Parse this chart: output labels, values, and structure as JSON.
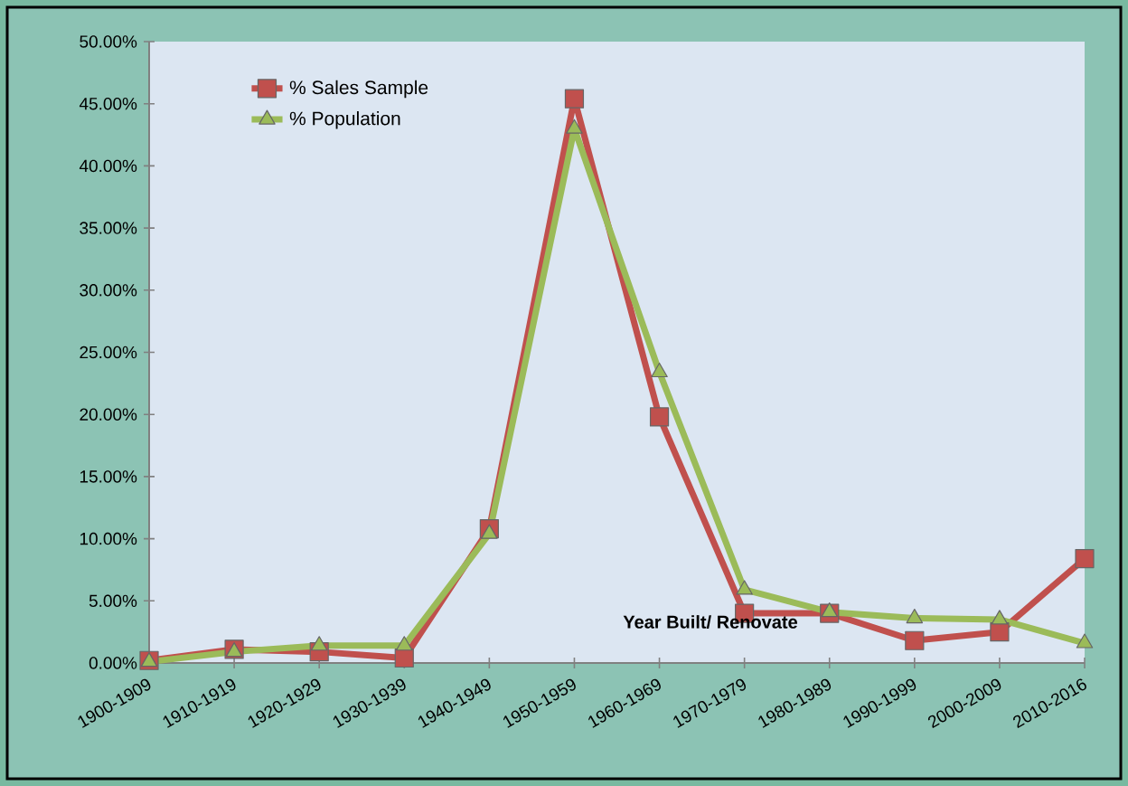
{
  "chart_data": {
    "type": "line",
    "xlabel": "Year Built/ Renovate",
    "categories": [
      "1900-1909",
      "1910-1919",
      "1920-1929",
      "1930-1939",
      "1940-1949",
      "1950-1959",
      "1960-1969",
      "1970-1979",
      "1980-1989",
      "1990-1999",
      "2000-2009",
      "2010-2016"
    ],
    "series": [
      {
        "name": "% Sales Sample",
        "color": "#c0504d",
        "marker": "square",
        "values": [
          0.2,
          1.1,
          0.9,
          0.4,
          10.8,
          45.4,
          19.8,
          4.0,
          4.0,
          1.8,
          2.5,
          8.4
        ]
      },
      {
        "name": "% Population",
        "color": "#9bbb59",
        "marker": "triangle",
        "values": [
          0.1,
          0.9,
          1.4,
          1.4,
          10.4,
          43.0,
          23.4,
          5.9,
          4.1,
          3.6,
          3.5,
          1.6
        ]
      }
    ],
    "ylim": [
      0,
      50
    ],
    "yticks": [
      {
        "value": 0,
        "label": "0.00%"
      },
      {
        "value": 5,
        "label": "5.00%"
      },
      {
        "value": 10,
        "label": "10.00%"
      },
      {
        "value": 15,
        "label": "15.00%"
      },
      {
        "value": 20,
        "label": "20.00%"
      },
      {
        "value": 25,
        "label": "25.00%"
      },
      {
        "value": 30,
        "label": "30.00%"
      },
      {
        "value": 35,
        "label": "35.00%"
      },
      {
        "value": 40,
        "label": "40.00%"
      },
      {
        "value": 45,
        "label": "45.00%"
      },
      {
        "value": 50,
        "label": "50.00%"
      }
    ],
    "grid": false,
    "legend": "top left"
  }
}
